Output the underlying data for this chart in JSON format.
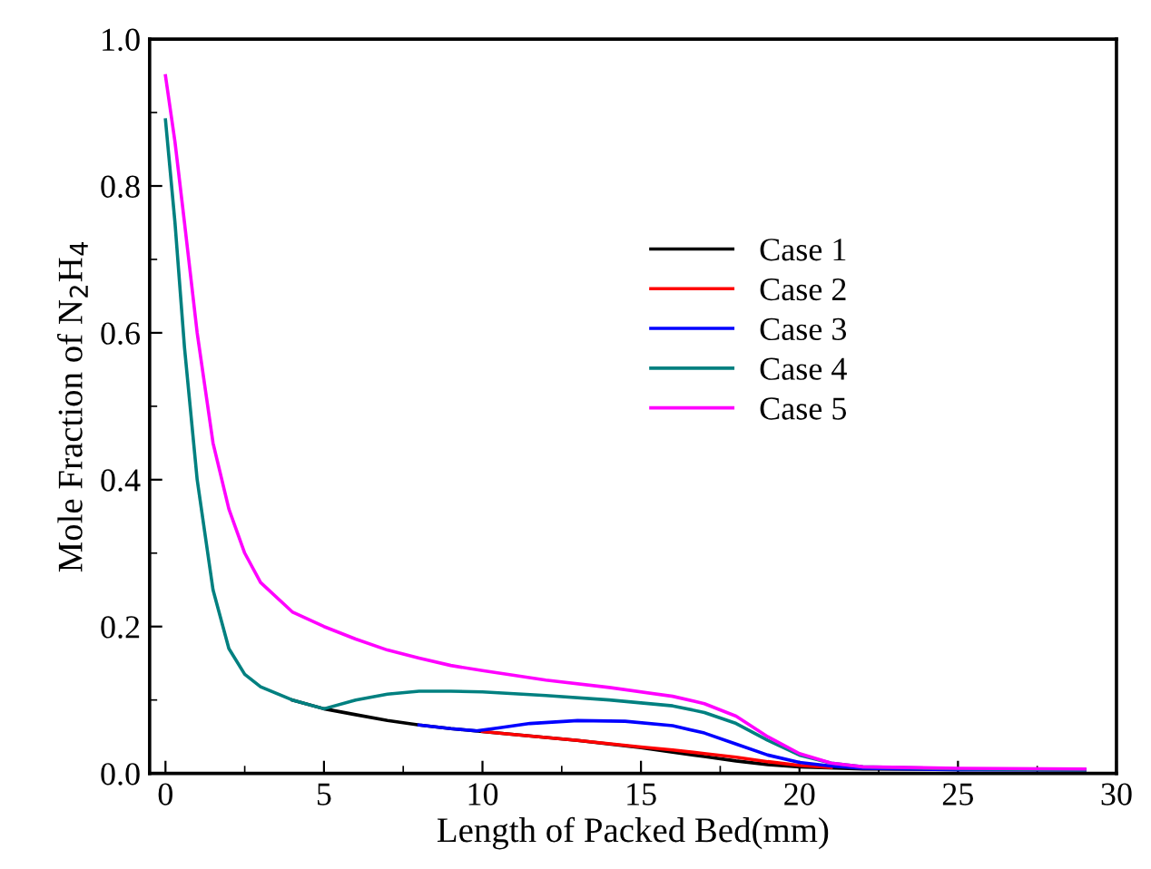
{
  "chart_data": {
    "type": "line",
    "xlabel": "Length of Packed Bed(mm)",
    "ylabel": "Mole Fraction of N$_{2}$H$_{4}$",
    "xlim": [
      -0.5,
      30
    ],
    "ylim": [
      0,
      1.0
    ],
    "xticks": [
      0,
      5,
      10,
      15,
      20,
      25,
      30
    ],
    "yticks": [
      {
        "value": 0,
        "label": "0.0"
      },
      0.2,
      0.4,
      0.6,
      0.8,
      {
        "value": 1,
        "label": "1.0"
      }
    ],
    "legend": "top",
    "grid": false,
    "marker": "none",
    "line_style": "solid",
    "series": [
      {
        "name": "Case 1",
        "color": "#000000",
        "x": [
          4,
          5,
          6,
          7,
          8,
          9,
          10,
          11,
          13,
          15,
          16,
          17,
          18,
          19,
          20,
          22,
          29
        ],
        "values": [
          0.1,
          0.088,
          0.08,
          0.072,
          0.066,
          0.061,
          0.057,
          0.053,
          0.045,
          0.035,
          0.029,
          0.023,
          0.017,
          0.012,
          0.009,
          0.006,
          0.005
        ]
      },
      {
        "name": "Case 2",
        "color": "#ff0000",
        "x": [
          10,
          11,
          13,
          15,
          16,
          17,
          18,
          19,
          20,
          21
        ],
        "values": [
          0.057,
          0.053,
          0.045,
          0.036,
          0.032,
          0.027,
          0.022,
          0.016,
          0.011,
          0.008
        ]
      },
      {
        "name": "Case 3",
        "color": "#0000ff",
        "x": [
          8,
          9,
          9.8,
          10.5,
          11.5,
          13,
          14.5,
          16,
          17,
          18,
          19,
          20,
          21,
          22,
          25,
          29
        ],
        "values": [
          0.066,
          0.061,
          0.058,
          0.062,
          0.068,
          0.072,
          0.071,
          0.065,
          0.055,
          0.04,
          0.025,
          0.015,
          0.01,
          0.007,
          0.005,
          0.005
        ]
      },
      {
        "name": "Case 4",
        "color": "#008080",
        "x": [
          0,
          0.3,
          0.6,
          1,
          1.5,
          2,
          2.5,
          3,
          4,
          5,
          6,
          7,
          8,
          9,
          10,
          12,
          14,
          16,
          17,
          18,
          19,
          20,
          21,
          22,
          25,
          29
        ],
        "values": [
          0.89,
          0.75,
          0.58,
          0.4,
          0.25,
          0.17,
          0.135,
          0.118,
          0.1,
          0.088,
          0.1,
          0.108,
          0.112,
          0.112,
          0.111,
          0.106,
          0.1,
          0.092,
          0.083,
          0.068,
          0.045,
          0.025,
          0.014,
          0.009,
          0.006,
          0.005
        ]
      },
      {
        "name": "Case 5",
        "color": "#ff00ff",
        "x": [
          0,
          0.3,
          0.6,
          1,
          1.5,
          2,
          2.5,
          3,
          4,
          5,
          6,
          7,
          8,
          9,
          10,
          12,
          14,
          16,
          17,
          18,
          19,
          20,
          21,
          22,
          25,
          29
        ],
        "values": [
          0.95,
          0.86,
          0.75,
          0.6,
          0.45,
          0.36,
          0.3,
          0.26,
          0.22,
          0.2,
          0.183,
          0.168,
          0.157,
          0.147,
          0.14,
          0.127,
          0.117,
          0.105,
          0.095,
          0.078,
          0.05,
          0.027,
          0.014,
          0.009,
          0.007,
          0.006
        ]
      }
    ]
  }
}
